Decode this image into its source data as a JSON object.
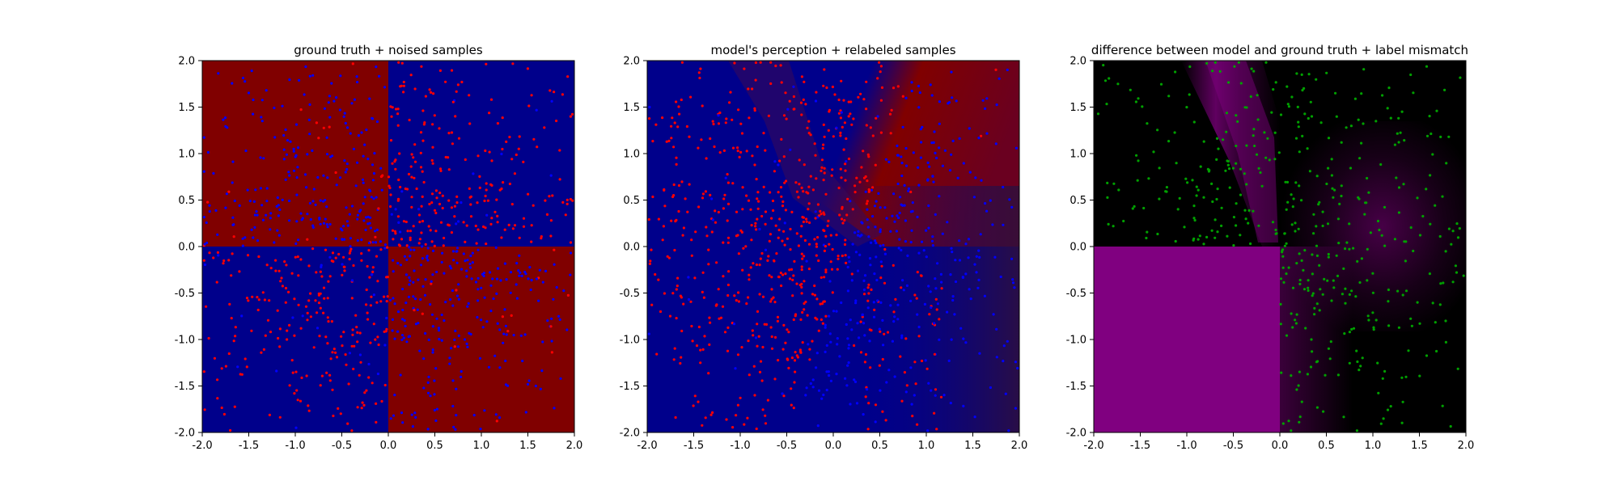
{
  "colors": {
    "ground_red": "#800000",
    "ground_blue": "#00008b",
    "diff_magenta": "#800080",
    "diff_black": "#000000",
    "point_red": "#ff0000",
    "point_blue": "#0000ff",
    "point_green": "#00a000",
    "axis": "#000000"
  },
  "chart_data": [
    {
      "type": "heatmap",
      "title": "ground truth + noised samples",
      "xlabel": "",
      "ylabel": "",
      "xlim": [
        -2.0,
        2.0
      ],
      "ylim": [
        -2.0,
        2.0
      ],
      "x_ticks": [
        "-2.0",
        "-1.5",
        "-1.0",
        "-0.5",
        "0.0",
        "0.5",
        "1.0",
        "1.5",
        "2.0"
      ],
      "y_ticks": [
        "2.0",
        "1.5",
        "1.0",
        "0.5",
        "0.0",
        "-0.5",
        "-1.0",
        "-1.5",
        "-2.0"
      ],
      "grid": false,
      "background": "XOR checkerboard: red where x*y<0 (top-left, bottom-right), blue where x*y>0 (top-right, bottom-left)",
      "scatter": {
        "n_points": 1000,
        "distribution": "uniform in [-2,2] x [-2,2], denser near origin",
        "color_rule": "red where x*y>0 over blue background, blue where x*y<0 over red background (noised labels)"
      }
    },
    {
      "type": "heatmap",
      "title": "model's perception + relabeled samples",
      "xlabel": "",
      "ylabel": "",
      "xlim": [
        -2.0,
        2.0
      ],
      "ylim": [
        -2.0,
        2.0
      ],
      "x_ticks": [
        "-2.0",
        "-1.5",
        "-1.0",
        "-0.5",
        "0.0",
        "0.5",
        "1.0",
        "1.5",
        "2.0"
      ],
      "y_ticks": [
        "2.0",
        "1.5",
        "1.0",
        "0.5",
        "0.0",
        "-0.5",
        "-1.0",
        "-1.5",
        "-2.0"
      ],
      "grid": false,
      "background": "blue on left/bottom, red band in upper middle/right with diagonal transition around x≈0 to x≈1.5",
      "scatter": {
        "n_points": 1000,
        "color_rule": "red in left and upper-center regions, blue in right region"
      }
    },
    {
      "type": "heatmap",
      "title": "difference between model and ground truth + label mismatch",
      "xlabel": "",
      "ylabel": "",
      "xlim": [
        -2.0,
        2.0
      ],
      "ylim": [
        -2.0,
        2.0
      ],
      "x_ticks": [
        "-2.0",
        "-1.5",
        "-1.0",
        "-0.5",
        "0.0",
        "0.5",
        "1.0",
        "1.5",
        "2.0"
      ],
      "y_ticks": [
        "2.0",
        "1.5",
        "1.0",
        "0.5",
        "0.0",
        "-0.5",
        "-1.0",
        "-1.5",
        "-2.0"
      ],
      "grid": false,
      "background": "magenta in bottom-left quadrant and diagonal band in upper-left; black elsewhere with faint magenta haze near center-right",
      "scatter": {
        "n_points": 600,
        "color": "green",
        "color_rule": "green mismatch points, absent from bottom-left quadrant"
      }
    }
  ]
}
